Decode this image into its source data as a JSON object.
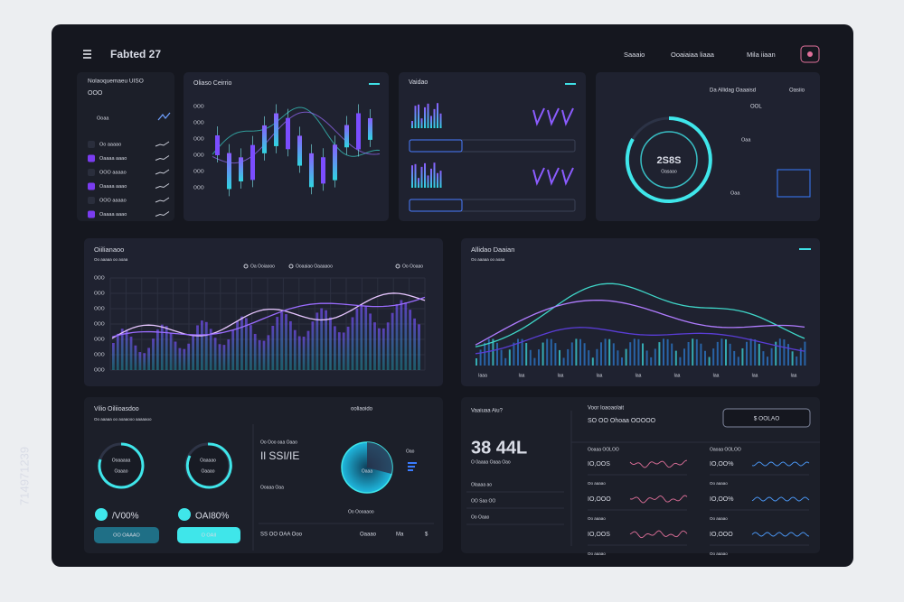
{
  "side_id": "714971239",
  "header": {
    "title": "Fabted 27",
    "nav": [
      "Saaaio",
      "Ooaiaiaa liaaa",
      "Mila iiaan"
    ]
  },
  "list_panel": {
    "title": "Nolaoquemaeu UISO",
    "subtitle": "OOO",
    "tag": "Ooaa",
    "items": [
      "Oo aaaao",
      "Oaaaa aaao",
      "OOO aaaao",
      "Oaaaa aaao",
      "OOO aaaao",
      "Oaaaa aaao"
    ]
  },
  "candle_panel": {
    "title": "Oliaso Ceirrio"
  },
  "mini_panel": {
    "title": "Vaidao"
  },
  "ring_panel": {
    "title": "Da Allidag Oaaaisd",
    "side_label": "Oasiio",
    "small": "OOL",
    "center": "2S8S",
    "center_sub": "Oasaao",
    "tag": "Oaa"
  },
  "area_left": {
    "title": "Oiilianaoo",
    "subtitle": "Oo aaaaa oo aoaa",
    "legend": [
      "Oa Ooiaooo",
      "Ooaaiao Oaaaaoo",
      "Oo Ooaao"
    ],
    "y_labels": [
      "OOO",
      "OOO",
      "OOO",
      "OOO",
      "OOO",
      "OOO",
      "OOO"
    ]
  },
  "area_right": {
    "title": "Allidao Daaian",
    "subtitle": "Oo aaaaa oo aoaa",
    "x_labels": [
      "Iaaa",
      "Iaa",
      "Iaa",
      "Iaa",
      "Iaa",
      "Iaa",
      "Iaa",
      "Iaa",
      "Iaa"
    ]
  },
  "gauge_panel": {
    "title": "Vilio Oiliioasdoo",
    "subtitle": "Oo aaaaa oo aoaaooo aaaaaoo",
    "right_label": "ooliaoido",
    "gauges": [
      {
        "label": "Ooaaaaa",
        "sub": "Oaaao"
      },
      {
        "label": "Oaaaao",
        "sub": "Oaaao"
      }
    ],
    "stats": [
      "/V00%",
      "OAI80%"
    ],
    "buttons": [
      "OO OAAAO",
      "O OAII"
    ],
    "mid_top": "Oo Ooo oaa Oaao",
    "mid_big": "Il SSI/IE",
    "mid_sub": "Ooaaa Oaa",
    "donut": "Oaaa",
    "donut_side": "Oao",
    "donut_legend": "Oo Oooaaoo",
    "footer": [
      "SS OO OAA Ooo",
      "Oaaao",
      "Ma",
      "$"
    ]
  },
  "stats_panel": {
    "title": "Vaaiuaa Aiu?",
    "big": "38 44L",
    "big_sub": "O 0aaaa Oaaa Oao",
    "rows": [
      "Olaaaa ao",
      "OO Saa OO",
      "Oo Oaao"
    ],
    "right_title": "Voor Ioaoaolait",
    "right_sub": "SO OO Ohoaa OOOOO",
    "button": "$ OOLAO",
    "col_heads": [
      "Ooaaa OOLOO",
      "Oaoaa OOLOO"
    ],
    "row_labels": [
      "Oo aaaao",
      "Oo aaaao",
      "Oo aaaao"
    ],
    "values": [
      [
        "IO,OOS",
        "IO,OO%"
      ],
      [
        "IO,OOO",
        "IO,OO%"
      ],
      [
        "IO,OOS",
        "IO,OOO"
      ]
    ]
  }
}
